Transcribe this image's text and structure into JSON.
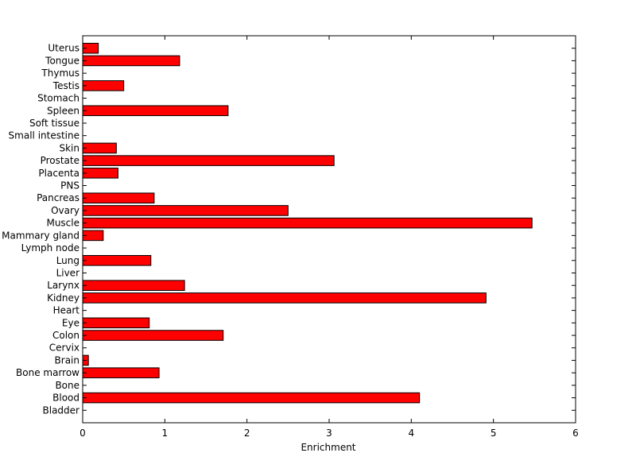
{
  "chart_data": {
    "type": "bar",
    "orientation": "horizontal",
    "title": "",
    "xlabel": "Enrichment",
    "ylabel": "",
    "xlim": [
      0,
      6
    ],
    "xticks": [
      "0",
      "1",
      "2",
      "3",
      "4",
      "5",
      "6"
    ],
    "grid": false,
    "legend": "none",
    "bar_color": "#ff0000",
    "bar_edge_color": "#000000",
    "categories": [
      "Bladder",
      "Blood",
      "Bone",
      "Bone marrow",
      "Brain",
      "Cervix",
      "Colon",
      "Eye",
      "Heart",
      "Kidney",
      "Larynx",
      "Liver",
      "Lung",
      "Lymph node",
      "Mammary gland",
      "Muscle",
      "Ovary",
      "Pancreas",
      "PNS",
      "Placenta",
      "Prostate",
      "Skin",
      "Small intestine",
      "Soft tissue",
      "Spleen",
      "Stomach",
      "Testis",
      "Thymus",
      "Tongue",
      "Uterus"
    ],
    "values": [
      0,
      4.1,
      0,
      0.93,
      0.07,
      0,
      1.71,
      0.81,
      0,
      4.91,
      1.24,
      0,
      0.83,
      0,
      0.25,
      5.47,
      2.5,
      0.87,
      0,
      0.43,
      3.06,
      0.41,
      0,
      0,
      1.77,
      0,
      0.5,
      0,
      1.18,
      0.19
    ]
  }
}
